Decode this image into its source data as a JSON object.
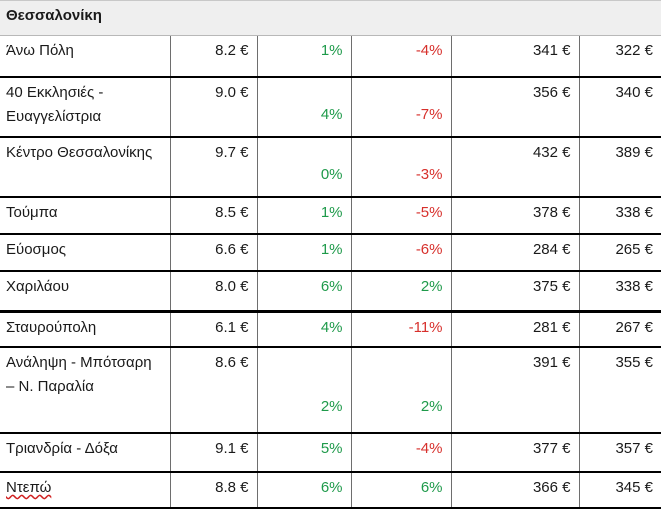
{
  "region": "Θεσσαλονίκη",
  "rows": [
    {
      "name": "Άνω Πόλη",
      "price": "8.2 €",
      "c1": "1%",
      "c2": "-4%",
      "v1": "341 €",
      "v2": "322 €"
    },
    {
      "name": "40 Εκκλησιές - Ευαγγελίστρια",
      "price": "9.0 €",
      "c1": "4%",
      "c2": "-7%",
      "v1": "356 €",
      "v2": "340 €"
    },
    {
      "name": "Κέντρο Θεσσαλονίκης",
      "price": "9.7 €",
      "c1": "0%",
      "c2": "-3%",
      "v1": "432 €",
      "v2": "389 €"
    },
    {
      "name": "Τούμπα",
      "price": "8.5 €",
      "c1": "1%",
      "c2": "-5%",
      "v1": "378 €",
      "v2": "338 €"
    },
    {
      "name": "Εύοσμος",
      "price": "6.6 €",
      "c1": "1%",
      "c2": "-6%",
      "v1": "284 €",
      "v2": "265 €"
    },
    {
      "name": "Χαριλάου",
      "price": "8.0 €",
      "c1": "6%",
      "c2": "2%",
      "v1": "375 €",
      "v2": "338 €"
    },
    {
      "name": "Σταυρούπολη",
      "price": "6.1 €",
      "c1": "4%",
      "c2": "-11%",
      "v1": "281 €",
      "v2": "267 €"
    },
    {
      "name": "Ανάληψη - Μπότσαρη – Ν. Παραλία",
      "price": "8.6 €",
      "c1": "2%",
      "c2": "2%",
      "v1": "391 €",
      "v2": "355 €"
    },
    {
      "name": "Τριανδρία - Δόξα",
      "price": "9.1 €",
      "c1": "5%",
      "c2": "-4%",
      "v1": "377 €",
      "v2": "357 €"
    },
    {
      "name": "Ντεπώ",
      "price": "8.8 €",
      "c1": "6%",
      "c2": "6%",
      "v1": "366 €",
      "v2": "345 €"
    }
  ],
  "colors": {
    "positive": "#1e9a4a",
    "negative": "#d7302c"
  }
}
